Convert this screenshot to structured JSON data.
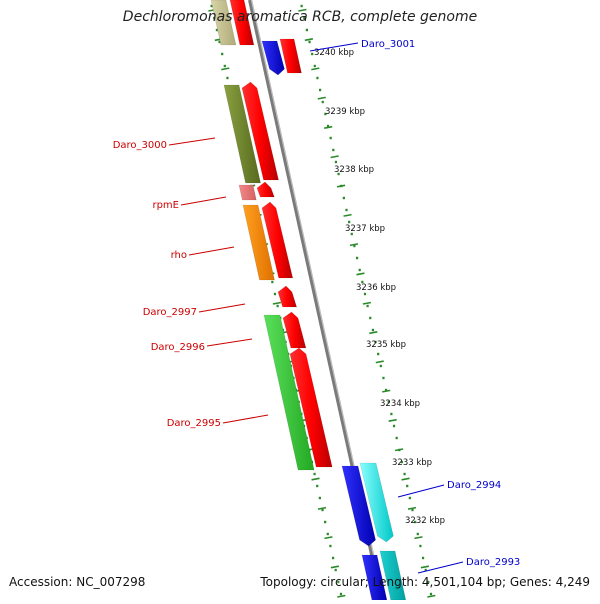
{
  "title": "Dechloromonas aromatica RCB, complete genome",
  "footer": {
    "accession": "Accession: NC_007298",
    "summary": "Topology: circular; Length: 4,501,104 bp; Genes: 4,249"
  },
  "colors": {
    "backbone": "#8a8a8a",
    "scale_ticks": "#2a8a2a",
    "forward_label": "#cc0000",
    "reverse_label": "#0000cc"
  },
  "scale_labels": [
    "3240 kbp",
    "3239 kbp",
    "3238 kbp",
    "3237 kbp",
    "3236 kbp",
    "3235 kbp",
    "3234 kbp",
    "3233 kbp",
    "3232 kbp"
  ],
  "gene_labels": {
    "left": [
      "Daro_3000",
      "rpmE",
      "rho",
      "Daro_2997",
      "Daro_2996",
      "Daro_2995"
    ],
    "right": [
      "Daro_3001",
      "Daro_2994",
      "Daro_2993"
    ]
  }
}
